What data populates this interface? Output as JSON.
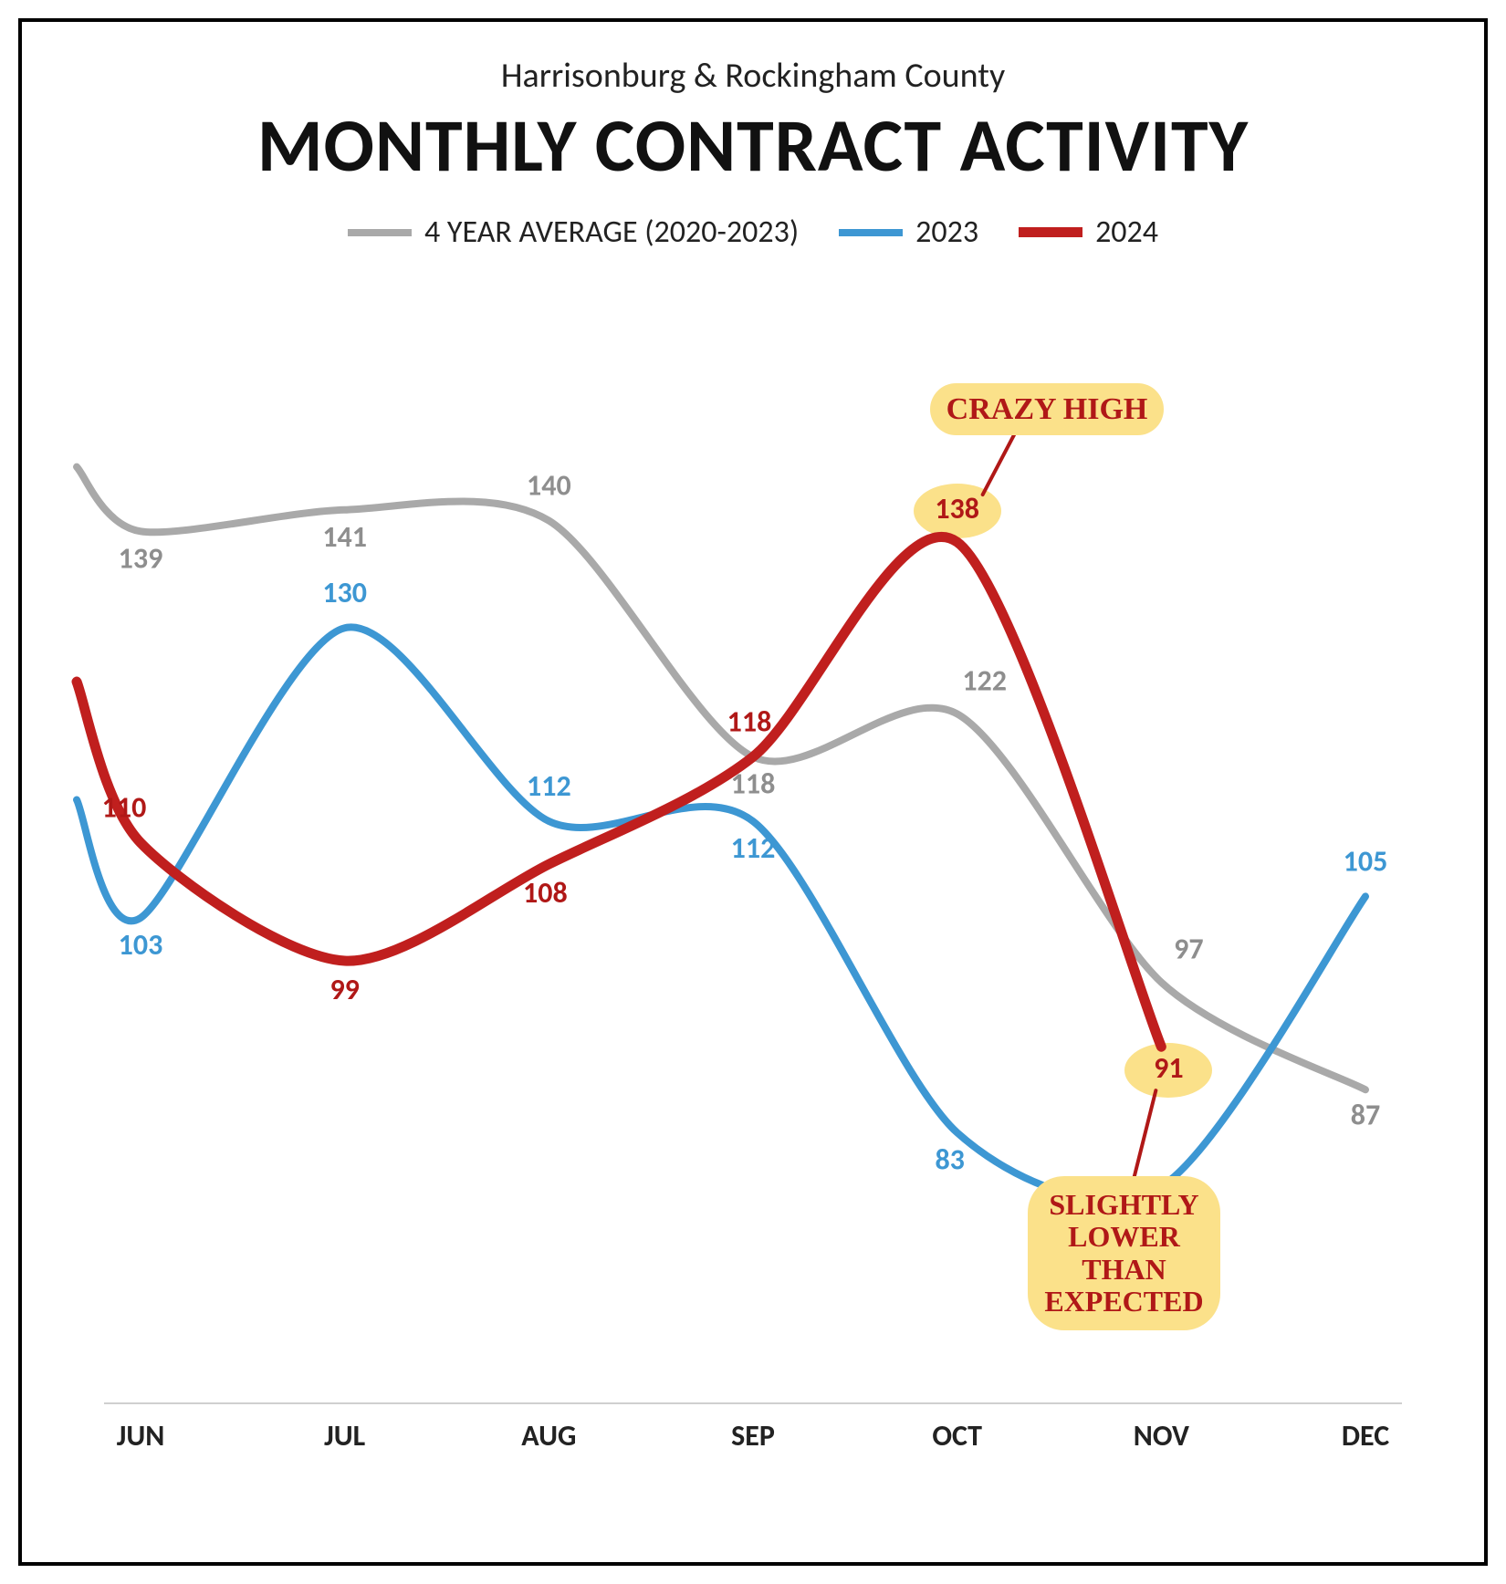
{
  "subtitle": "Harrisonburg & Rockingham County",
  "title": "MONTHLY CONTRACT ACTIVITY",
  "legend": [
    {
      "label": "4 YEAR AVERAGE (2020-2023)",
      "color": "#a9a9a9",
      "width": 8
    },
    {
      "label": "2023",
      "color": "#3d97d3",
      "width": 8
    },
    {
      "label": "2024",
      "color": "#c01f1e",
      "width": 11
    }
  ],
  "chart": {
    "type": "line",
    "months": [
      "JUN",
      "JUL",
      "AUG",
      "SEP",
      "OCT",
      "NOV",
      "DEC"
    ],
    "y_domain": [
      60,
      155
    ],
    "left_edge_values": {
      "avg": 145,
      "y2023": 114,
      "y2024": 125
    },
    "series": {
      "avg": {
        "color": "#a9a9a9",
        "width": 8,
        "label_color": "#8e8e8e",
        "values": [
          139,
          141,
          140,
          118,
          122,
          97,
          87
        ],
        "label_offsets": [
          {
            "dx": 0,
            "dy": 40
          },
          {
            "dx": 0,
            "dy": 40
          },
          {
            "dx": 0,
            "dy": -28
          },
          {
            "dx": 0,
            "dy": 40
          },
          {
            "dx": 30,
            "dy": -26
          },
          {
            "dx": 30,
            "dy": -26
          },
          {
            "dx": 0,
            "dy": 38
          }
        ]
      },
      "y2023": {
        "color": "#3d97d3",
        "width": 8,
        "label_color": "#3d97d3",
        "values": [
          103,
          130,
          112,
          112,
          83,
          78,
          105
        ],
        "label_offsets": [
          {
            "dx": 0,
            "dy": 40
          },
          {
            "dx": 0,
            "dy": -28
          },
          {
            "dx": 0,
            "dy": -28
          },
          {
            "dx": 0,
            "dy": 40
          },
          {
            "dx": -8,
            "dy": 40
          },
          {
            "dx": 18,
            "dy": 42
          },
          {
            "dx": 0,
            "dy": -28
          }
        ]
      },
      "y2024": {
        "color": "#c01f1e",
        "width": 11,
        "label_color": "#b01817",
        "values": [
          110,
          99,
          108,
          118,
          138,
          91,
          null
        ],
        "label_offsets": [
          {
            "dx": -18,
            "dy": -28
          },
          {
            "dx": 0,
            "dy": 42
          },
          {
            "dx": -4,
            "dy": 42
          },
          {
            "dx": -4,
            "dy": -28
          },
          {
            "dx": 0,
            "dy": -26
          },
          {
            "dx": 8,
            "dy": 34
          },
          null
        ],
        "highlight_indices": [
          4,
          5
        ]
      }
    },
    "label_fontsize": 32,
    "label_fontweight": 700,
    "axis_fontsize": 32,
    "axis_color": "#222",
    "axis_line_color": "#cfcfcf",
    "curve_smoothing": 0.72
  },
  "annotations": {
    "crazy_high": {
      "text": "CRAZY HIGH",
      "fontsize": 34,
      "target_series": "y2024",
      "target_index": 4
    },
    "lower": {
      "text": "SLIGHTLY\nLOWER\nTHAN\nEXPECTED",
      "fontsize": 32,
      "target_series": "y2024",
      "target_index": 5
    }
  }
}
